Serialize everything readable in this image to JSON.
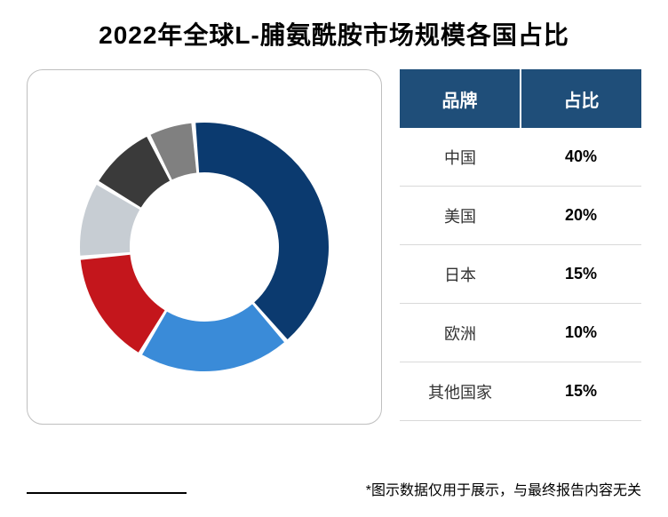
{
  "title": "2022年全球L-脯氨酰胺市场规模各国占比",
  "title_fontsize": 28,
  "footnote": "*图示数据仅用于展示，与最终报告内容无关",
  "footnote_fontsize": 16,
  "table": {
    "header_bg": "#1f4e79",
    "header_color": "#ffffff",
    "header_fontsize": 20,
    "cell_fontsize": 18,
    "columns": [
      "品牌",
      "占比"
    ],
    "rows": [
      [
        "中国",
        "40%"
      ],
      [
        "美国",
        "20%"
      ],
      [
        "日本",
        "15%"
      ],
      [
        "欧洲",
        "10%"
      ],
      [
        "其他国家",
        "15%"
      ]
    ]
  },
  "chart": {
    "type": "donut",
    "inner_radius": 84,
    "outer_radius": 140,
    "gap_deg": 2,
    "start_angle_deg": -5,
    "background": "#ffffff",
    "slice_order_note": "clockwise from top: 中国, 美国, 日本(split red/silver visual), 欧洲, 其他",
    "slices": [
      {
        "label": "中国",
        "value": 40,
        "color": "#0b3a6f"
      },
      {
        "label": "美国",
        "value": 20,
        "color": "#3a8bd8"
      },
      {
        "label": "日本",
        "value": 15,
        "color": "#c4161c"
      },
      {
        "label": "欧洲",
        "value": 10,
        "color": "#c7cdd3"
      },
      {
        "label": "其他-深",
        "value": 9,
        "color": "#3a3a3a"
      },
      {
        "label": "其他-浅",
        "value": 6,
        "color": "#808080"
      }
    ]
  }
}
